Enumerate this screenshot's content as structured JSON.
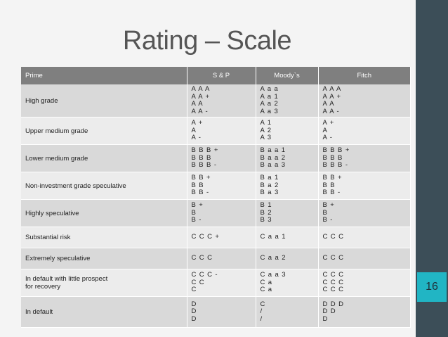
{
  "slide": {
    "title": "Rating – Scale",
    "page_number": "16"
  },
  "table": {
    "headers": [
      "Prime",
      "S & P",
      "Moody`s",
      "Fitch"
    ],
    "rows": [
      {
        "category": "High grade",
        "sp": "A A A\nA A +\nA A\nA A -",
        "moodys": "A a a\nA a 1\nA a 2\nA a 3",
        "fitch": "A A A\nA A +\nA A\nA A -"
      },
      {
        "category": "Upper medium grade",
        "sp": "A +\nA\nA -",
        "moodys": "A 1\nA 2\nA 3",
        "fitch": "A +\nA\nA -"
      },
      {
        "category": "Lower medium grade",
        "sp": "B B B +\nB B B\nB B B -",
        "moodys": "B a a 1\nB a a 2\nB a a 3",
        "fitch": "B B B +\nB B B\nB B B -"
      },
      {
        "category": "Non-investment grade speculative",
        "sp": "B B +\nB B\nB B -",
        "moodys": "B a 1\nB a 2\nB a 3",
        "fitch": "B B +\nB B\nB B -"
      },
      {
        "category": "Highly speculative",
        "sp": "B +\nB\nB -",
        "moodys": "B 1\nB 2\nB 3",
        "fitch": "B +\nB\nB -"
      },
      {
        "category": "Substantial risk",
        "sp": "C C C +",
        "moodys": "C a a 1",
        "fitch": "C C C"
      },
      {
        "category": "Extremely speculative",
        "sp": "C C C",
        "moodys": "C a a 2",
        "fitch": "C C C"
      },
      {
        "category": "In default with little prospect\nfor recovery",
        "sp": "C C C -\nC C\nC",
        "moodys": "C a a 3\nC a\nC a",
        "fitch": "C C C\nC C C\nC C C"
      },
      {
        "category": "In default",
        "sp": "D\nD\nD",
        "moodys": "C\n/\n/",
        "fitch": "D D D\nD D\nD"
      }
    ]
  },
  "colors": {
    "header_bg": "#7f7f7f",
    "row_odd": "#d9d9d9",
    "row_even": "#ececec",
    "sidebar": "#3c4e58",
    "page_box": "#21b5c4"
  }
}
